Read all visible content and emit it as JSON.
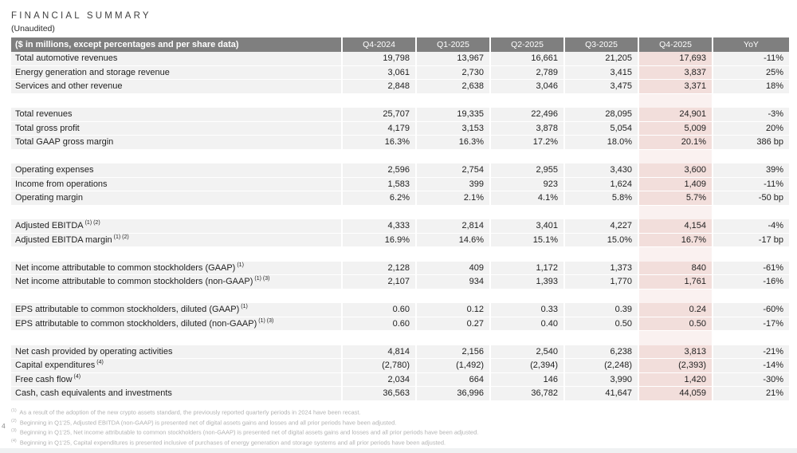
{
  "page": {
    "title": "FINANCIAL SUMMARY",
    "subtitle": "(Unaudited)",
    "page_number": "4"
  },
  "colors": {
    "header_bg": "#7f7f7f",
    "row_bg": "#f2f2f2",
    "highlight_bg": "#f2dedb",
    "highlight_gap_bg": "#faf1f0",
    "footnote_text": "#b3b3b3"
  },
  "table": {
    "label_header": "($ in millions, except percentages and per share data)",
    "columns": [
      "Q4-2024",
      "Q1-2025",
      "Q2-2025",
      "Q3-2025",
      "Q4-2025",
      "YoY"
    ],
    "highlight_column": "Q4-2025",
    "groups": [
      {
        "rows": [
          {
            "label": "Total automotive revenues",
            "sup": "",
            "values": [
              "19,798",
              "13,967",
              "16,661",
              "21,205",
              "17,693",
              "-11%"
            ]
          },
          {
            "label": "Energy generation and storage revenue",
            "sup": "",
            "values": [
              "3,061",
              "2,730",
              "2,789",
              "3,415",
              "3,837",
              "25%"
            ]
          },
          {
            "label": "Services and other revenue",
            "sup": "",
            "values": [
              "2,848",
              "2,638",
              "3,046",
              "3,475",
              "3,371",
              "18%"
            ]
          }
        ]
      },
      {
        "rows": [
          {
            "label": "Total revenues",
            "sup": "",
            "values": [
              "25,707",
              "19,335",
              "22,496",
              "28,095",
              "24,901",
              "-3%"
            ]
          },
          {
            "label": "Total gross profit",
            "sup": "",
            "values": [
              "4,179",
              "3,153",
              "3,878",
              "5,054",
              "5,009",
              "20%"
            ]
          },
          {
            "label": "Total GAAP gross margin",
            "sup": "",
            "values": [
              "16.3%",
              "16.3%",
              "17.2%",
              "18.0%",
              "20.1%",
              "386 bp"
            ]
          }
        ]
      },
      {
        "rows": [
          {
            "label": "Operating expenses",
            "sup": "",
            "values": [
              "2,596",
              "2,754",
              "2,955",
              "3,430",
              "3,600",
              "39%"
            ]
          },
          {
            "label": "Income from operations",
            "sup": "",
            "values": [
              "1,583",
              "399",
              "923",
              "1,624",
              "1,409",
              "-11%"
            ]
          },
          {
            "label": "Operating margin",
            "sup": "",
            "values": [
              "6.2%",
              "2.1%",
              "4.1%",
              "5.8%",
              "5.7%",
              "-50 bp"
            ]
          }
        ]
      },
      {
        "rows": [
          {
            "label": "Adjusted EBITDA",
            "sup": "(1) (2)",
            "values": [
              "4,333",
              "2,814",
              "3,401",
              "4,227",
              "4,154",
              "-4%"
            ]
          },
          {
            "label": "Adjusted EBITDA margin",
            "sup": "(1) (2)",
            "values": [
              "16.9%",
              "14.6%",
              "15.1%",
              "15.0%",
              "16.7%",
              "-17 bp"
            ]
          }
        ]
      },
      {
        "rows": [
          {
            "label": "Net income attributable to common stockholders (GAAP)",
            "sup": "(1)",
            "values": [
              "2,128",
              "409",
              "1,172",
              "1,373",
              "840",
              "-61%"
            ]
          },
          {
            "label": "Net income attributable to common stockholders (non-GAAP)",
            "sup": "(1) (3)",
            "values": [
              "2,107",
              "934",
              "1,393",
              "1,770",
              "1,761",
              "-16%"
            ]
          }
        ]
      },
      {
        "rows": [
          {
            "label": "EPS attributable to common stockholders, diluted (GAAP)",
            "sup": "(1)",
            "values": [
              "0.60",
              "0.12",
              "0.33",
              "0.39",
              "0.24",
              "-60%"
            ]
          },
          {
            "label": "EPS attributable to common stockholders, diluted (non-GAAP)",
            "sup": "(1) (3)",
            "values": [
              "0.60",
              "0.27",
              "0.40",
              "0.50",
              "0.50",
              "-17%"
            ]
          }
        ]
      },
      {
        "rows": [
          {
            "label": "Net cash provided by operating activities",
            "sup": "",
            "values": [
              "4,814",
              "2,156",
              "2,540",
              "6,238",
              "3,813",
              "-21%"
            ]
          },
          {
            "label": "Capital expenditures",
            "sup": "(4)",
            "values": [
              "(2,780)",
              "(1,492)",
              "(2,394)",
              "(2,248)",
              "(2,393)",
              "-14%"
            ]
          },
          {
            "label": "Free cash flow",
            "sup": "(4)",
            "values": [
              "2,034",
              "664",
              "146",
              "3,990",
              "1,420",
              "-30%"
            ]
          },
          {
            "label": "Cash, cash equivalents and investments",
            "sup": "",
            "values": [
              "36,563",
              "36,996",
              "36,782",
              "41,647",
              "44,059",
              "21%"
            ]
          }
        ]
      }
    ]
  },
  "footnotes": [
    {
      "marker": "(1)",
      "text": "As a result of the adoption of the new crypto assets standard, the previously reported quarterly periods in 2024 have been recast."
    },
    {
      "marker": "(2)",
      "text": "Beginning in Q1'25, Adjusted EBITDA (non-GAAP) is presented net of digital assets gains and losses and all prior periods have been adjusted."
    },
    {
      "marker": "(3)",
      "text": "Beginning in Q1'25, Net income attributable to common stockholders (non-GAAP) is presented net of digital assets gains and losses and all prior periods have been adjusted."
    },
    {
      "marker": "(4)",
      "text": "Beginning in Q1'25, Capital expenditures is presented inclusive of purchases of energy generation and storage systems and all prior periods have been adjusted."
    }
  ]
}
